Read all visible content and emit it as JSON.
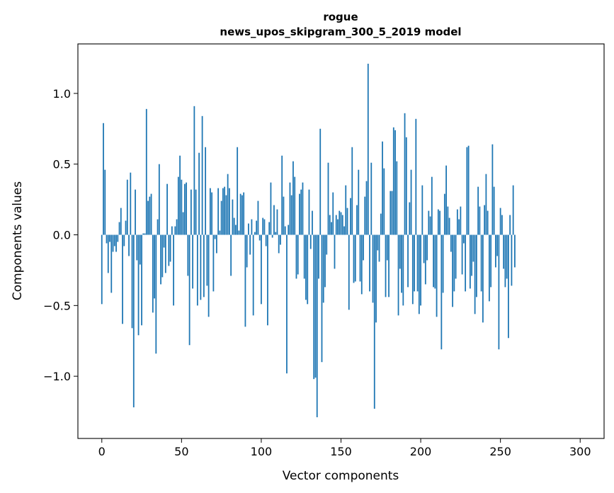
{
  "chart_data": {
    "type": "bar",
    "title": "rogue",
    "subtitle": "news_upos_skipgram_300_5_2019 model",
    "xlabel": "Vector components",
    "ylabel": "Components values",
    "xlim": [
      -15,
      315
    ],
    "ylim": [
      -1.44,
      1.35
    ],
    "xticks": [
      0,
      50,
      100,
      150,
      200,
      250,
      300
    ],
    "xtick_labels": [
      "0",
      "50",
      "100",
      "150",
      "200",
      "250",
      "300"
    ],
    "yticks": [
      -1.0,
      -0.5,
      0.0,
      0.5,
      1.0
    ],
    "ytick_labels": [
      "−1.0",
      "−0.5",
      "0.0",
      "0.5",
      "1.0"
    ],
    "bar_color": "#1f77b4",
    "grid": false,
    "values": [
      -0.49,
      0.79,
      0.46,
      -0.06,
      -0.27,
      -0.05,
      -0.41,
      -0.12,
      -0.08,
      -0.12,
      -0.05,
      0.09,
      0.19,
      -0.63,
      -0.08,
      0.1,
      0.39,
      -0.15,
      0.44,
      -0.66,
      -1.22,
      0.32,
      -0.18,
      -0.71,
      -0.21,
      -0.64,
      0.01,
      0.01,
      0.89,
      0.24,
      0.27,
      0.29,
      -0.55,
      -0.45,
      -0.84,
      0.11,
      0.5,
      -0.35,
      -0.3,
      -0.09,
      -0.27,
      0.36,
      -0.22,
      -0.19,
      0.06,
      -0.5,
      0.06,
      0.11,
      0.41,
      0.56,
      0.39,
      0.16,
      0.36,
      0.37,
      -0.29,
      -0.78,
      0.32,
      -0.38,
      0.91,
      0.32,
      -0.5,
      0.58,
      -0.46,
      0.84,
      -0.44,
      0.62,
      -0.36,
      -0.58,
      0.33,
      0.3,
      -0.4,
      -0.03,
      -0.13,
      0.33,
      0.03,
      0.24,
      0.33,
      0.34,
      0.28,
      0.43,
      0.33,
      -0.29,
      0.25,
      0.12,
      0.07,
      0.62,
      0.03,
      0.29,
      0.28,
      0.3,
      -0.65,
      -0.23,
      0.08,
      -0.14,
      0.11,
      -0.57,
      0.02,
      0.1,
      0.24,
      -0.04,
      -0.49,
      0.12,
      0.11,
      -0.08,
      -0.64,
      0.09,
      0.37,
      -0.02,
      0.21,
      0.02,
      0.18,
      -0.13,
      -0.07,
      0.56,
      0.27,
      0.06,
      -0.98,
      0.07,
      0.37,
      0.28,
      0.52,
      0.41,
      -0.31,
      -0.28,
      0.29,
      0.32,
      0.37,
      -0.31,
      -0.46,
      -0.49,
      0.32,
      -0.1,
      0.17,
      -1.02,
      -1.01,
      -1.29,
      -0.31,
      0.75,
      -0.9,
      -0.48,
      -0.37,
      -0.14,
      0.51,
      0.14,
      0.09,
      0.3,
      -0.24,
      0.14,
      0.11,
      0.17,
      0.16,
      0.14,
      0.06,
      0.35,
      0.19,
      -0.53,
      0.26,
      0.62,
      -0.34,
      -0.33,
      0.21,
      0.46,
      -0.33,
      -0.42,
      -0.18,
      0.27,
      0.38,
      1.21,
      -0.4,
      0.51,
      -0.48,
      -1.23,
      -0.62,
      -0.11,
      -0.19,
      0.15,
      0.66,
      0.47,
      -0.44,
      -0.18,
      -0.44,
      0.31,
      0.31,
      0.76,
      0.74,
      0.52,
      -0.57,
      -0.24,
      -0.41,
      -0.5,
      0.86,
      0.69,
      -0.37,
      0.23,
      0.46,
      -0.49,
      -0.4,
      0.82,
      -0.4,
      -0.56,
      -0.5,
      0.35,
      -0.2,
      -0.35,
      -0.18,
      0.17,
      0.13,
      0.41,
      -0.37,
      -0.38,
      -0.58,
      0.18,
      0.17,
      -0.81,
      -0.41,
      0.29,
      0.49,
      0.2,
      0.12,
      -0.12,
      -0.51,
      -0.4,
      -0.31,
      0.18,
      0.11,
      0.2,
      -0.28,
      -0.06,
      -0.4,
      0.62,
      0.63,
      -0.38,
      -0.29,
      -0.19,
      -0.56,
      -0.44,
      0.34,
      0.2,
      -0.4,
      -0.62,
      0.21,
      0.43,
      0.17,
      -0.47,
      -0.37,
      0.64,
      0.34,
      -0.23,
      -0.15,
      -0.81,
      0.19,
      0.14,
      -0.24,
      -0.37,
      -0.31,
      -0.73,
      0.14,
      -0.36,
      0.35,
      -0.23
    ]
  }
}
